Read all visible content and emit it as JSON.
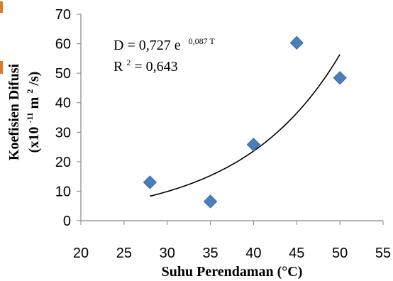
{
  "chart_data": {
    "type": "scatter",
    "xlabel": "Suhu Perendaman (°C)",
    "ylabel_line1": "Koefisien Difusi",
    "ylabel_line2_prefix": "(x10",
    "ylabel_line2_exp": "-11",
    "ylabel_line2_mid": " m",
    "ylabel_line2_exp2": "2",
    "ylabel_line2_suffix": "/s)",
    "xlim": [
      20,
      55
    ],
    "ylim": [
      0,
      70
    ],
    "xticks": [
      20,
      25,
      30,
      35,
      40,
      45,
      50,
      55
    ],
    "yticks": [
      0,
      10,
      20,
      30,
      40,
      50,
      60,
      70
    ],
    "points": [
      {
        "x": 28,
        "y": 13
      },
      {
        "x": 35,
        "y": 6.5
      },
      {
        "x": 40,
        "y": 25.8
      },
      {
        "x": 45,
        "y": 60.3
      },
      {
        "x": 50,
        "y": 48.4
      }
    ],
    "marker_color": "#4a7ebb",
    "marker_stroke": "#3a6aa8",
    "trendline": {
      "type": "exponential",
      "a": 0.727,
      "b": 0.087,
      "x_range": [
        28,
        50
      ],
      "color": "#000000"
    },
    "equation": {
      "main": "D = 0,727 e",
      "exp": "0,087 T"
    },
    "r2": {
      "prefix": "R",
      "exp": "2",
      "value": " = 0,643"
    },
    "grid": false,
    "legend": "none"
  }
}
